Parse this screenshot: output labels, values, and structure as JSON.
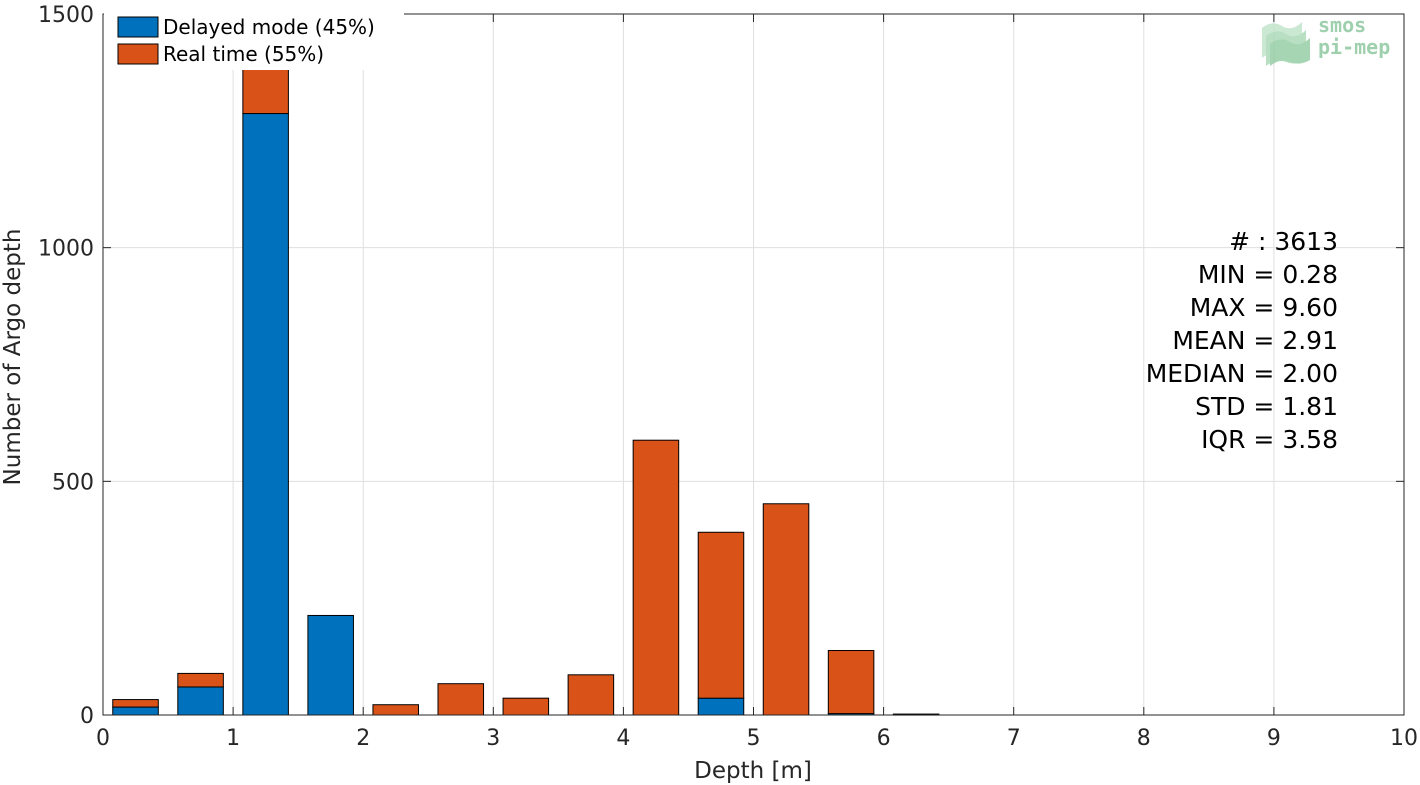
{
  "chart_data": {
    "type": "bar",
    "stacked": true,
    "xlabel": "Depth [m]",
    "ylabel": "Number of Argo depth",
    "xlim": [
      0,
      10
    ],
    "ylim": [
      0,
      1500
    ],
    "xticks": [
      0,
      1,
      2,
      3,
      4,
      5,
      6,
      7,
      8,
      9,
      10
    ],
    "yticks": [
      0,
      500,
      1000,
      1500
    ],
    "grid": true,
    "legend_position": "top-left",
    "bin_centers": [
      0.25,
      0.75,
      1.25,
      1.75,
      2.25,
      2.75,
      3.25,
      3.75,
      4.25,
      4.75,
      5.25,
      5.75,
      6.25
    ],
    "bar_width": 0.35,
    "series": [
      {
        "name": "Delayed mode (45%)",
        "color": "#0072bd",
        "values": [
          17,
          60,
          1287,
          213,
          0,
          0,
          0,
          0,
          0,
          36,
          0,
          3,
          2
        ]
      },
      {
        "name": "Real time (55%)",
        "color": "#d95319",
        "values": [
          16,
          29,
          198,
          0,
          22,
          67,
          36,
          86,
          588,
          355,
          452,
          135,
          0
        ]
      }
    ],
    "stats": [
      "# : 3613",
      "MIN = 0.28",
      "MAX =  9.60",
      "MEAN = 2.91",
      "MEDIAN = 2.00",
      "STD = 1.81",
      "IQR = 3.58"
    ]
  },
  "logo": {
    "line1": "smos",
    "line2": "pi-mep",
    "color": "#9fd0ae"
  }
}
